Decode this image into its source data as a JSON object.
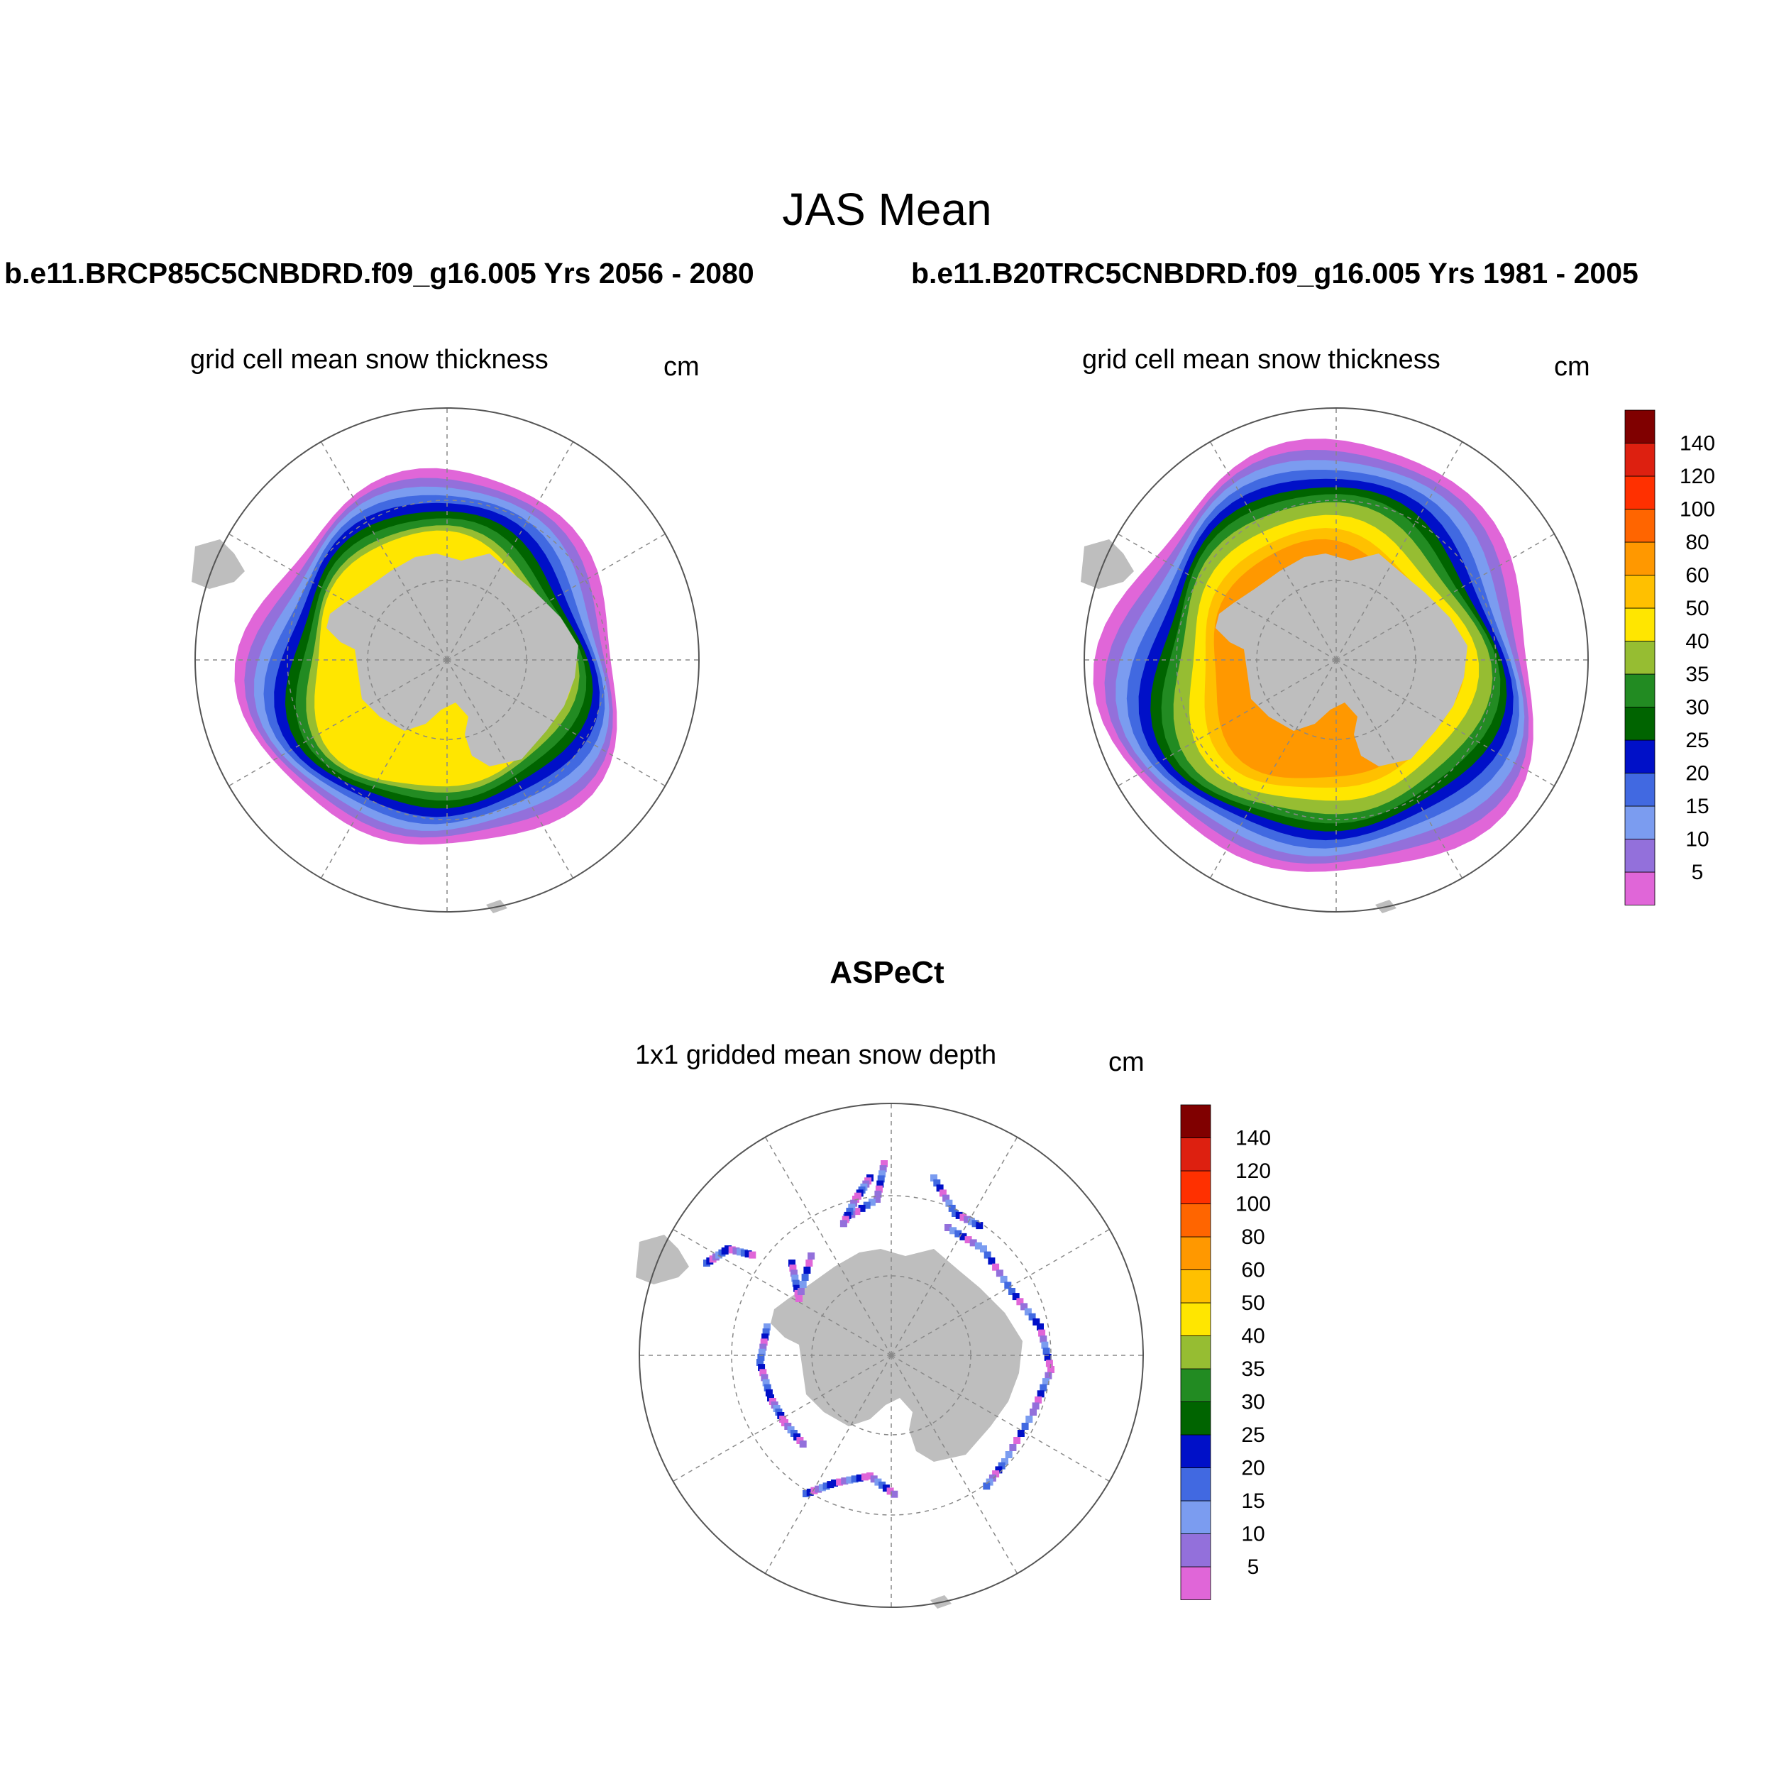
{
  "title": "JAS Mean",
  "case_titles": [
    "b.e11.BRCP85C5CNBDRD.f09_g16.005  Yrs 2056 - 2080",
    "b.e11.B20TRC5CNBDRD.f09_g16.005  Yrs 1981 - 2005"
  ],
  "obs_title": "ASPeCt",
  "panels": [
    {
      "name": "rcp85",
      "subtitle": "grid cell mean snow thickness",
      "units": "cm"
    },
    {
      "name": "historical",
      "subtitle": "grid cell mean snow thickness",
      "units": "cm"
    },
    {
      "name": "aspect",
      "subtitle": "1x1 gridded mean snow depth",
      "units": "cm"
    }
  ],
  "colorbar": {
    "labels": [
      "5",
      "10",
      "15",
      "20",
      "25",
      "30",
      "35",
      "40",
      "50",
      "60",
      "80",
      "100",
      "120",
      "140"
    ],
    "colors": [
      "#e066d8",
      "#9370db",
      "#7b9cf0",
      "#4169e1",
      "#0010c8",
      "#006400",
      "#228b22",
      "#96bd32",
      "#ffe600",
      "#ffc000",
      "#ff9800",
      "#ff6500",
      "#ff3000",
      "#dd2010",
      "#800000"
    ]
  },
  "map_colors": {
    "land": "#bebebe",
    "grid": "#888888"
  },
  "chart_data": {
    "type": "map",
    "projection": "south polar stereographic",
    "levels_cm": [
      5,
      10,
      15,
      20,
      25,
      30,
      35,
      40,
      50,
      60,
      80,
      100,
      120,
      140
    ]
  }
}
